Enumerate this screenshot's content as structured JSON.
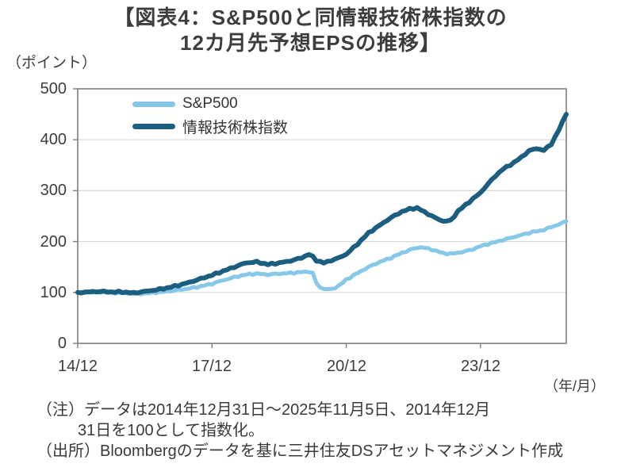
{
  "title": {
    "line1": "【図表4：S&P500と同情報技術株指数の",
    "line2": "12カ月先予想EPSの推移】"
  },
  "notes": {
    "note1": "（注）データは2014年12月31日～2025年11月5日、2014年12月",
    "note2": "31日を100として指数化。",
    "source": "（出所）Bloombergのデータを基に三井住友DSアセットマネジメント作成"
  },
  "chart_data": {
    "type": "line",
    "title": "S&P500と同情報技術株指数の12カ月先予想EPSの推移",
    "unit_label": "（ポイント）",
    "grid": true,
    "legend_position": "top-left-inside",
    "x_axis": {
      "tick_labels": [
        "14/12",
        "17/12",
        "20/12",
        "23/12"
      ],
      "tick_months": [
        0,
        36,
        72,
        108
      ],
      "unit": "（年/月）",
      "range_months": [
        0,
        131
      ],
      "start": "2014/12",
      "end": "2025/11"
    },
    "y_axis": {
      "min": 0,
      "max": 500,
      "ticks": [
        "0",
        "100",
        "200",
        "300",
        "400",
        "500"
      ]
    },
    "colors": {
      "grid": "#d9d9d9",
      "axis": "#7f7f7f",
      "text": "#3d3d3d"
    },
    "series": [
      {
        "name": "S&P500",
        "color": "#87c7e8",
        "stroke_width": 5,
        "points": [
          [
            0,
            100
          ],
          [
            3,
            100
          ],
          [
            6,
            101
          ],
          [
            9,
            99
          ],
          [
            12,
            99
          ],
          [
            15,
            97
          ],
          [
            18,
            98
          ],
          [
            21,
            100
          ],
          [
            24,
            102
          ],
          [
            27,
            105
          ],
          [
            30,
            108
          ],
          [
            33,
            112
          ],
          [
            36,
            117
          ],
          [
            39,
            124
          ],
          [
            42,
            130
          ],
          [
            45,
            135
          ],
          [
            48,
            137
          ],
          [
            51,
            135
          ],
          [
            54,
            137
          ],
          [
            57,
            138
          ],
          [
            60,
            140
          ],
          [
            62,
            141
          ],
          [
            63,
            138
          ],
          [
            64,
            118
          ],
          [
            65,
            110
          ],
          [
            66,
            107
          ],
          [
            68,
            106
          ],
          [
            70,
            113
          ],
          [
            72,
            125
          ],
          [
            75,
            138
          ],
          [
            78,
            150
          ],
          [
            81,
            160
          ],
          [
            84,
            168
          ],
          [
            87,
            178
          ],
          [
            90,
            186
          ],
          [
            92,
            189
          ],
          [
            94,
            186
          ],
          [
            96,
            182
          ],
          [
            98,
            177
          ],
          [
            100,
            176
          ],
          [
            102,
            178
          ],
          [
            104,
            181
          ],
          [
            106,
            185
          ],
          [
            108,
            191
          ],
          [
            110,
            195
          ],
          [
            112,
            199
          ],
          [
            114,
            203
          ],
          [
            116,
            207
          ],
          [
            118,
            211
          ],
          [
            120,
            215
          ],
          [
            122,
            219
          ],
          [
            124,
            221
          ],
          [
            126,
            226
          ],
          [
            128,
            231
          ],
          [
            130,
            237
          ],
          [
            131,
            240
          ]
        ]
      },
      {
        "name": "情報技術株指数",
        "color": "#1c5e80",
        "stroke_width": 6,
        "points": [
          [
            0,
            100
          ],
          [
            3,
            101
          ],
          [
            6,
            102
          ],
          [
            9,
            101
          ],
          [
            12,
            101
          ],
          [
            15,
            99
          ],
          [
            18,
            102
          ],
          [
            21,
            105
          ],
          [
            24,
            109
          ],
          [
            27,
            114
          ],
          [
            30,
            120
          ],
          [
            33,
            127
          ],
          [
            36,
            134
          ],
          [
            39,
            142
          ],
          [
            42,
            150
          ],
          [
            45,
            158
          ],
          [
            48,
            160
          ],
          [
            51,
            155
          ],
          [
            54,
            158
          ],
          [
            57,
            162
          ],
          [
            60,
            168
          ],
          [
            62,
            175
          ],
          [
            63,
            170
          ],
          [
            64,
            163
          ],
          [
            66,
            158
          ],
          [
            68,
            163
          ],
          [
            70,
            168
          ],
          [
            72,
            175
          ],
          [
            75,
            195
          ],
          [
            78,
            217
          ],
          [
            81,
            232
          ],
          [
            84,
            247
          ],
          [
            87,
            259
          ],
          [
            89,
            264
          ],
          [
            91,
            266
          ],
          [
            93,
            258
          ],
          [
            96,
            246
          ],
          [
            98,
            240
          ],
          [
            100,
            241
          ],
          [
            102,
            260
          ],
          [
            104,
            272
          ],
          [
            106,
            284
          ],
          [
            108,
            296
          ],
          [
            110,
            313
          ],
          [
            112,
            329
          ],
          [
            114,
            342
          ],
          [
            116,
            351
          ],
          [
            117,
            355
          ],
          [
            119,
            366
          ],
          [
            120,
            372
          ],
          [
            121,
            378
          ],
          [
            123,
            383
          ],
          [
            125,
            379
          ],
          [
            127,
            392
          ],
          [
            128,
            405
          ],
          [
            129,
            419
          ],
          [
            130,
            435
          ],
          [
            131,
            450
          ]
        ]
      }
    ]
  }
}
